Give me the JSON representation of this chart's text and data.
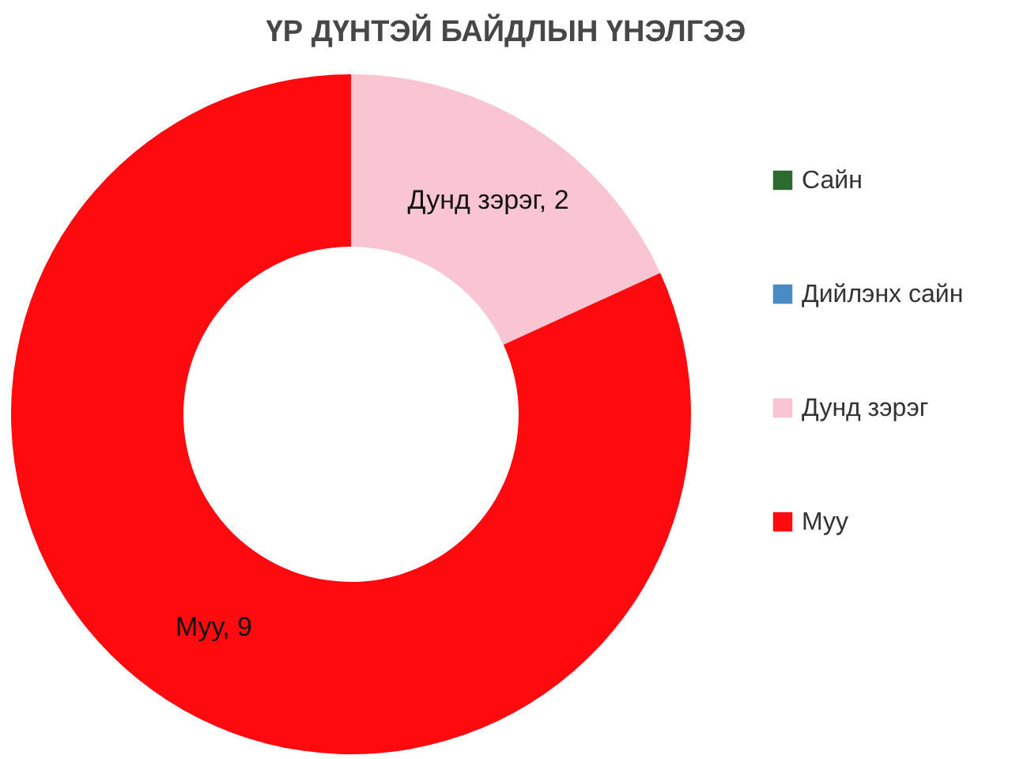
{
  "chart_data": {
    "type": "donut",
    "title": "ҮР ДҮНТЭЙ БАЙДЛЫН ҮНЭЛГЭЭ",
    "categories": [
      "Сайн",
      "Дийлэнх сайн",
      "Дунд зэрэг",
      "Муу"
    ],
    "values": [
      0,
      0,
      2,
      9
    ],
    "colors": [
      "#2d6a2f",
      "#4a8bc4",
      "#f9c5d3",
      "#fe0a0f"
    ],
    "value_labels": [
      null,
      null,
      "Дунд зэрэг, 2",
      "Муу, 9"
    ],
    "legend": "right"
  }
}
